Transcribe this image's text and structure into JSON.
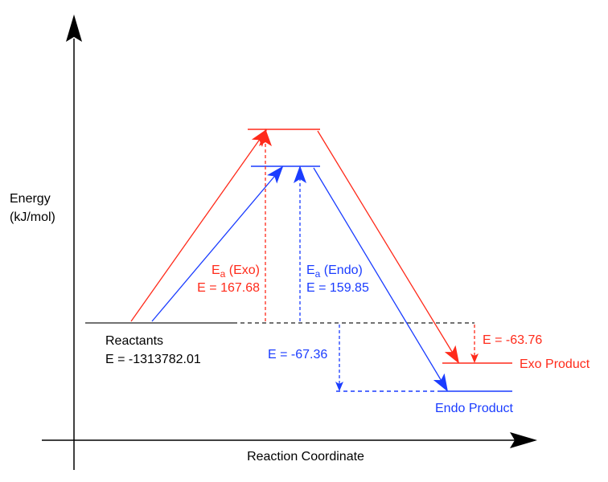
{
  "axes": {
    "y_label_line1": "Energy",
    "y_label_line2": "(kJ/mol)",
    "x_label": "Reaction Coordinate"
  },
  "reactants": {
    "label": "Reactants",
    "energy": "E = -1313782.01"
  },
  "exo": {
    "ea_label": "E",
    "ea_sub": "a",
    "ea_suffix": " (Exo)",
    "ea_value": "E = 167.68",
    "delta": "E = -63.76",
    "product": "Exo Product"
  },
  "endo": {
    "ea_label": "E",
    "ea_sub": "a",
    "ea_suffix": " (Endo)",
    "ea_value": "E = 159.85",
    "delta": "E = -67.36",
    "product": "Endo Product"
  },
  "colors": {
    "exo": "#ff2a1a",
    "endo": "#1a3cff",
    "reactants": "#000000"
  }
}
